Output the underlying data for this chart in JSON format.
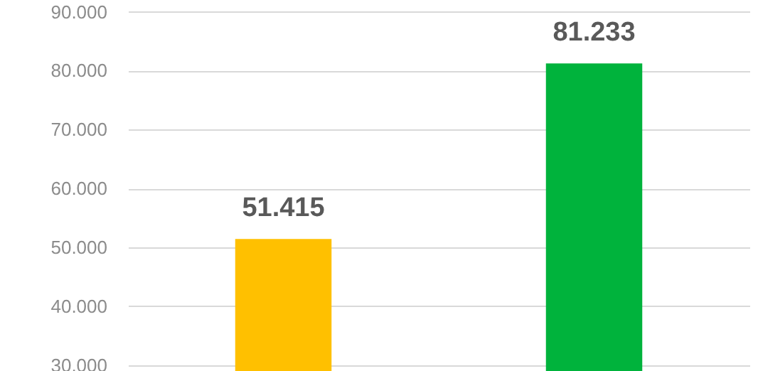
{
  "chart_data": {
    "type": "bar",
    "categories": [
      null,
      null
    ],
    "values": [
      51415,
      81233
    ],
    "colors": [
      "#ffc000",
      "#00b33c"
    ],
    "value_labels": [
      "51.415",
      "81.233"
    ],
    "ylim": [
      29000,
      92000
    ],
    "yticks": [
      {
        "value": 30000,
        "label": "30.000"
      },
      {
        "value": 40000,
        "label": "40.000"
      },
      {
        "value": 50000,
        "label": "50.000"
      },
      {
        "value": 60000,
        "label": "60.000"
      },
      {
        "value": 70000,
        "label": "70.000"
      },
      {
        "value": 80000,
        "label": "80.000"
      },
      {
        "value": 90000,
        "label": "90.000"
      }
    ],
    "grid": "y"
  }
}
